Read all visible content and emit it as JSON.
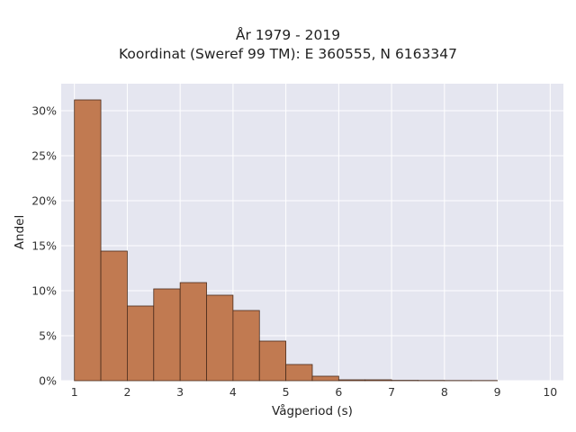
{
  "chart_data": {
    "type": "bar",
    "title": "År 1979 - 2019",
    "subtitle": "Koordinat (Sweref 99 TM): E 360555, N 6163347",
    "xlabel": "Vågperiod (s)",
    "ylabel": "Andel",
    "xlim": [
      0.75,
      10.25
    ],
    "ylim": [
      0,
      0.33
    ],
    "x_ticks": [
      1,
      2,
      3,
      4,
      5,
      6,
      7,
      8,
      9,
      10
    ],
    "x_tick_labels": [
      "1",
      "2",
      "3",
      "4",
      "5",
      "6",
      "7",
      "8",
      "9",
      "10"
    ],
    "y_ticks": [
      0,
      0.05,
      0.1,
      0.15,
      0.2,
      0.25,
      0.3
    ],
    "y_tick_labels": [
      "0%",
      "5%",
      "10%",
      "15%",
      "20%",
      "25%",
      "30%"
    ],
    "bin_width": 0.5,
    "bins": [
      {
        "start": 1.0,
        "value": 0.312
      },
      {
        "start": 1.5,
        "value": 0.144
      },
      {
        "start": 2.0,
        "value": 0.083
      },
      {
        "start": 2.5,
        "value": 0.102
      },
      {
        "start": 3.0,
        "value": 0.109
      },
      {
        "start": 3.5,
        "value": 0.095
      },
      {
        "start": 4.0,
        "value": 0.078
      },
      {
        "start": 4.5,
        "value": 0.044
      },
      {
        "start": 5.0,
        "value": 0.018
      },
      {
        "start": 5.5,
        "value": 0.005
      },
      {
        "start": 6.0,
        "value": 0.001
      },
      {
        "start": 6.5,
        "value": 0.001
      },
      {
        "start": 7.0,
        "value": 0.0004
      },
      {
        "start": 7.5,
        "value": 0.0003
      },
      {
        "start": 8.0,
        "value": 0.0002
      },
      {
        "start": 8.5,
        "value": 0.0002
      }
    ],
    "grid": true,
    "colors": {
      "bar_fill": "#c17a51",
      "bar_edge": "#4a2c1c",
      "plot_background": "#e5e6f0",
      "grid": "#ffffff"
    }
  }
}
